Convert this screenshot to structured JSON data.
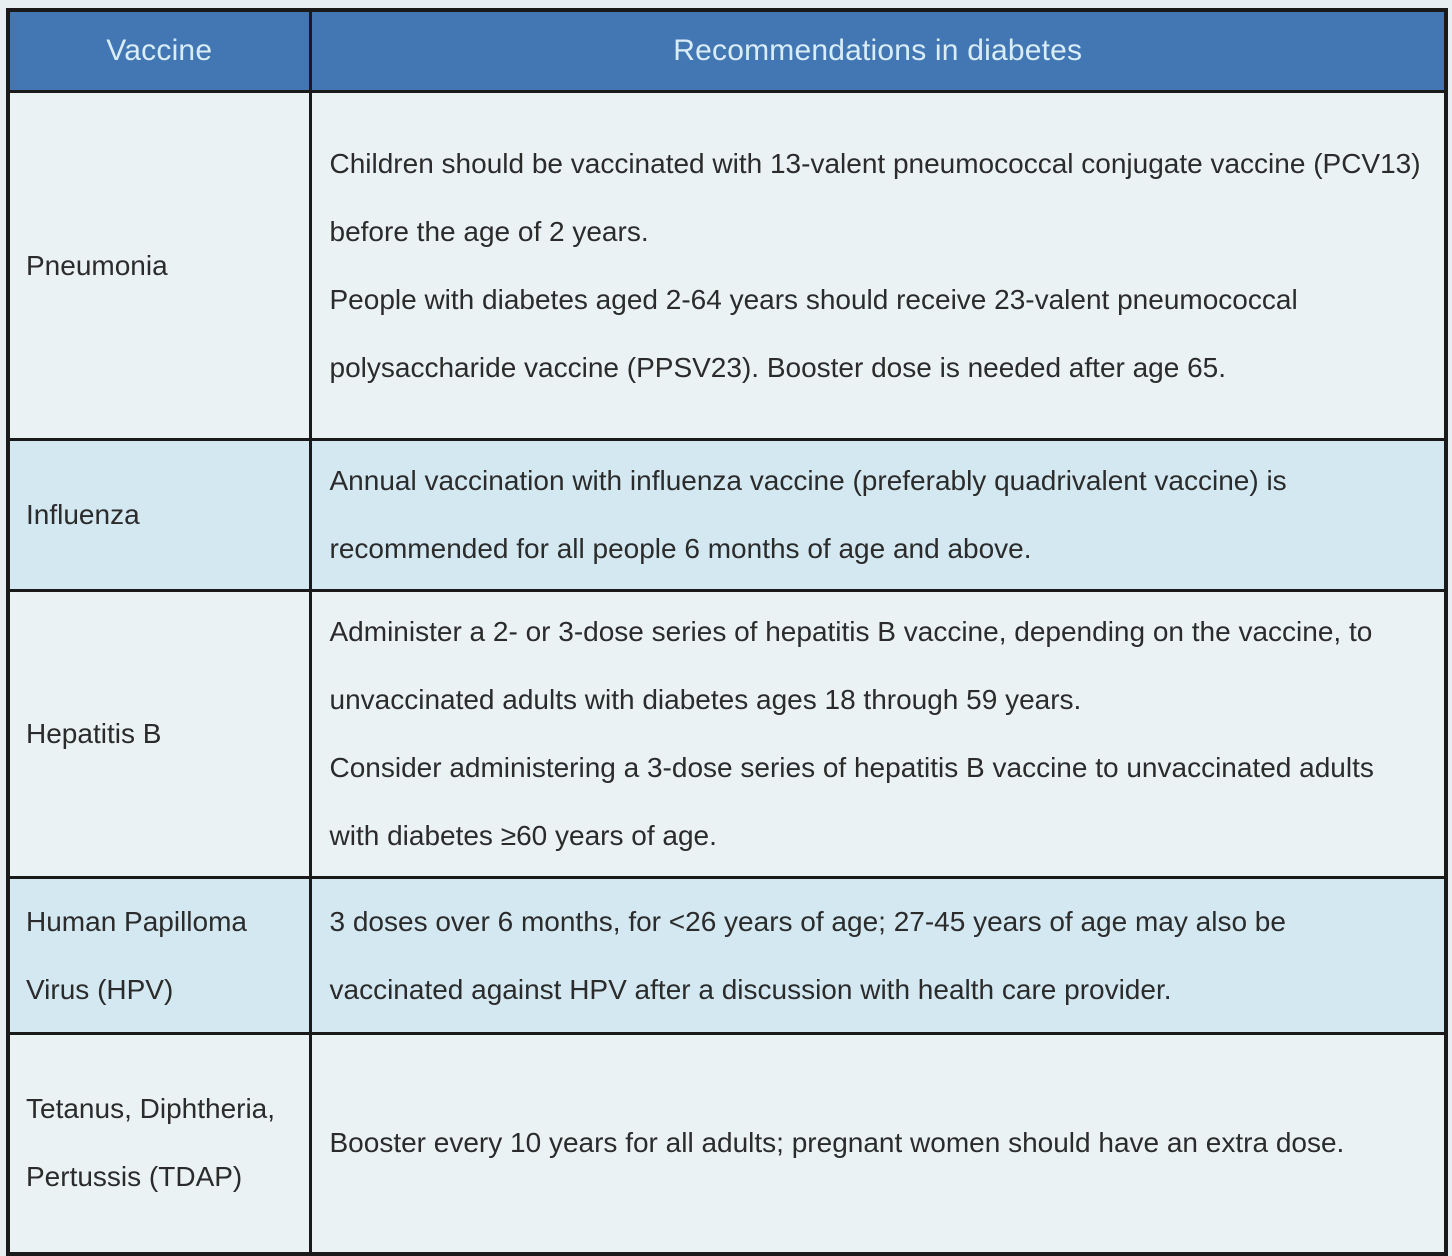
{
  "table": {
    "columns": [
      "Vaccine",
      "Recommendations in diabetes"
    ],
    "rows": [
      {
        "vaccine": "Pneumonia",
        "recommendation": [
          "Children should be vaccinated with 13-valent pneumococcal conjugate vaccine (PCV13) before the age of 2 years.",
          "People with diabetes aged 2-64 years should receive 23-valent pneumococcal polysaccharide vaccine (PPSV23). Booster dose is needed after age 65."
        ]
      },
      {
        "vaccine": "Influenza",
        "recommendation": [
          "Annual vaccination with influenza vaccine (preferably quadrivalent vaccine) is recommended for all people 6 months of age and above."
        ]
      },
      {
        "vaccine": "Hepatitis B",
        "recommendation": [
          "Administer a 2- or 3-dose series of hepatitis B vaccine, depending on the vaccine, to unvaccinated adults with diabetes ages 18 through 59 years.",
          "Consider administering a 3-dose series of hepatitis B vaccine to unvaccinated adults with diabetes ≥60 years of age."
        ]
      },
      {
        "vaccine": "Human Papilloma Virus (HPV)",
        "recommendation": [
          "3 doses over 6 months, for <26 years of age; 27-45 years of age may also be vaccinated against HPV after a discussion with health care provider."
        ]
      },
      {
        "vaccine": "Tetanus, Diphtheria, Pertussis (TDAP)",
        "recommendation": [
          "Booster every 10 years for all adults; pregnant women should have an extra dose."
        ]
      }
    ],
    "colors": {
      "header_bg": "#4277B4",
      "header_text": "#D9EDF7",
      "row_light_bg": "#EAF2F4",
      "row_shaded_bg": "#D3E8F1",
      "border": "#1A1A1A",
      "body_text": "#2B2B2B"
    }
  }
}
